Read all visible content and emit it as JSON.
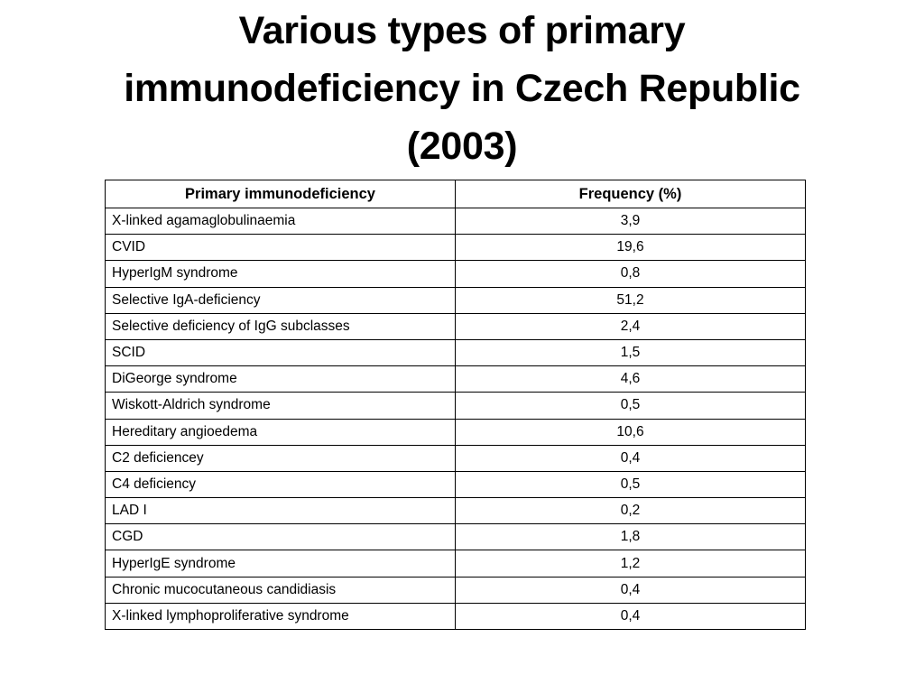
{
  "title": {
    "lines": [
      "Various types of primary",
      "immunodeficiency in Czech Republic",
      "(2003)"
    ]
  },
  "table": {
    "headers": [
      "Primary immunodeficiency",
      "Frequency (%)"
    ],
    "rows": [
      [
        "X-linked agamaglobulinaemia",
        "3,9"
      ],
      [
        "CVID",
        "19,6"
      ],
      [
        "HyperIgM syndrome",
        "0,8"
      ],
      [
        "Selective IgA-deficiency",
        "51,2"
      ],
      [
        "Selective deficiency of IgG subclasses",
        "2,4"
      ],
      [
        "SCID",
        "1,5"
      ],
      [
        "DiGeorge syndrome",
        "4,6"
      ],
      [
        "Wiskott-Aldrich syndrome",
        "0,5"
      ],
      [
        "Hereditary angioedema",
        "10,6"
      ],
      [
        "C2 deficiencey",
        "0,4"
      ],
      [
        "C4 deficiency",
        "0,5"
      ],
      [
        "LAD I",
        "0,2"
      ],
      [
        "CGD",
        "1,8"
      ],
      [
        "HyperIgE syndrome",
        "1,2"
      ],
      [
        "Chronic mucocutaneous candidiasis",
        "0,4"
      ],
      [
        "X-linked lymphoproliferative syndrome",
        "0,4"
      ]
    ]
  }
}
